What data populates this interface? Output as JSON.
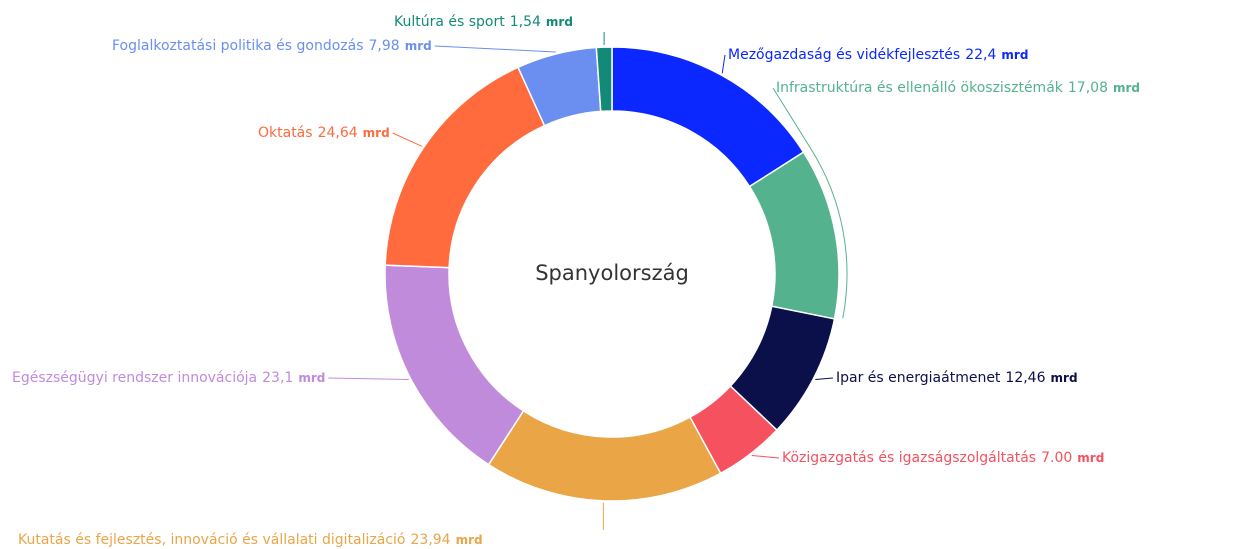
{
  "chart_data": {
    "type": "donut",
    "center_label": "Spanyolország",
    "unit": "mrd",
    "categories": [
      "Mezőgazdaság és vidékfejlesztés",
      "Infrastruktúra és ellenálló ökoszisztémák",
      "Ipar és energiaátmenet",
      "Közigazgatás és igazságszolgáltatás",
      "Kutatás és fejlesztés, innováció és vállalati digitalizáció",
      "Egészségügyi rendszer innovációja",
      "Oktatás",
      "Foglalkoztatási politika és gondozás",
      "Kultúra és sport"
    ],
    "values": [
      22.4,
      17.08,
      12.46,
      7.0,
      23.94,
      23.1,
      24.64,
      7.98,
      1.54
    ],
    "value_labels": [
      "22,4",
      "17,08",
      "12,46",
      "7.00",
      "23,94",
      "23,1",
      "24,64",
      "7,98",
      "1,54"
    ],
    "colors": [
      "#0a28ff",
      "#55b28e",
      "#0b0f4a",
      "#f5515f",
      "#eaa547",
      "#c18bdb",
      "#ff6b3d",
      "#6b8ff0",
      "#138a78"
    ]
  }
}
